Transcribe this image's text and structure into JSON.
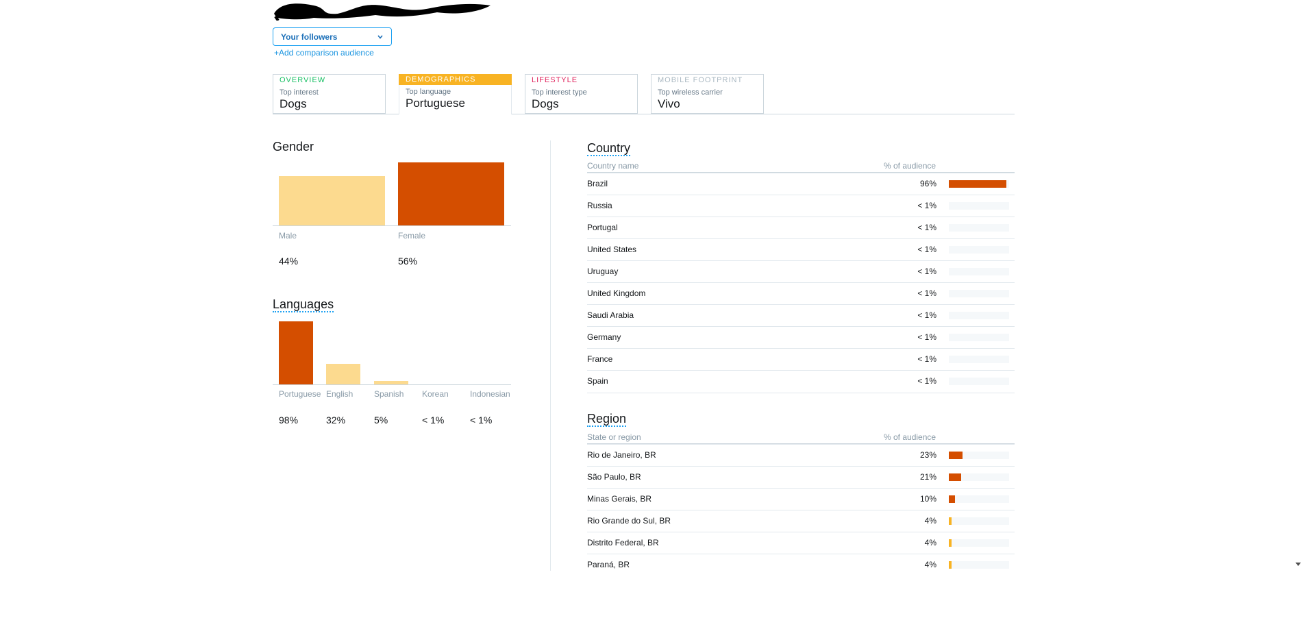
{
  "audience": {
    "selected": "Your followers",
    "add_comparison": "+Add comparison audience"
  },
  "tabs": [
    {
      "category": "Overview",
      "subtitle": "Top interest",
      "value": "Dogs",
      "color": "#17bf63",
      "active": false
    },
    {
      "category": "Demographics",
      "subtitle": "Top language",
      "value": "Portuguese",
      "color": "#ffffff",
      "active": true
    },
    {
      "category": "Lifestyle",
      "subtitle": "Top interest type",
      "value": "Dogs",
      "color": "#e0245e",
      "active": false
    },
    {
      "category": "Mobile Footprint",
      "subtitle": "Top wireless carrier",
      "value": "Vivo",
      "color": "#aab8c2",
      "active": false
    }
  ],
  "gender": {
    "title": "Gender",
    "items": [
      {
        "label": "Male",
        "pct_text": "44%",
        "value": 44,
        "color": "#fcda8f"
      },
      {
        "label": "Female",
        "pct_text": "56%",
        "value": 56,
        "color": "#d44e00"
      }
    ]
  },
  "languages": {
    "title": "Languages",
    "items": [
      {
        "label": "Portuguese",
        "pct_text": "98%",
        "value": 98,
        "color": "#d44e00"
      },
      {
        "label": "English",
        "pct_text": "32%",
        "value": 32,
        "color": "#fcda8f"
      },
      {
        "label": "Spanish",
        "pct_text": "5%",
        "value": 5,
        "color": "#fcda8f"
      },
      {
        "label": "Korean",
        "pct_text": "< 1%",
        "value": 0.5,
        "color": "#fcda8f"
      },
      {
        "label": "Indonesian",
        "pct_text": "< 1%",
        "value": 0.5,
        "color": "#fcda8f"
      }
    ]
  },
  "country": {
    "title": "Country",
    "col_name": "Country name",
    "col_pct": "% of audience",
    "rows": [
      {
        "name": "Brazil",
        "pct_text": "96%",
        "value": 96
      },
      {
        "name": "Russia",
        "pct_text": "< 1%",
        "value": 0
      },
      {
        "name": "Portugal",
        "pct_text": "< 1%",
        "value": 0
      },
      {
        "name": "United States",
        "pct_text": "< 1%",
        "value": 0
      },
      {
        "name": "Uruguay",
        "pct_text": "< 1%",
        "value": 0
      },
      {
        "name": "United Kingdom",
        "pct_text": "< 1%",
        "value": 0
      },
      {
        "name": "Saudi Arabia",
        "pct_text": "< 1%",
        "value": 0
      },
      {
        "name": "Germany",
        "pct_text": "< 1%",
        "value": 0
      },
      {
        "name": "France",
        "pct_text": "< 1%",
        "value": 0
      },
      {
        "name": "Spain",
        "pct_text": "< 1%",
        "value": 0
      }
    ]
  },
  "region": {
    "title": "Region",
    "col_name": "State or region",
    "col_pct": "% of audience",
    "rows": [
      {
        "name": "Rio de Janeiro, BR",
        "pct_text": "23%",
        "value": 23
      },
      {
        "name": "São Paulo, BR",
        "pct_text": "21%",
        "value": 21
      },
      {
        "name": "Minas Gerais, BR",
        "pct_text": "10%",
        "value": 10
      },
      {
        "name": "Rio Grande do Sul, BR",
        "pct_text": "4%",
        "value": 4
      },
      {
        "name": "Distrito Federal, BR",
        "pct_text": "4%",
        "value": 4
      },
      {
        "name": "Paraná, BR",
        "pct_text": "4%",
        "value": 4
      }
    ]
  },
  "colors": {
    "high": "#d44e00",
    "low": "#f8b323",
    "track": "#f5f8fa",
    "accent": "#1da1f2"
  },
  "icons": {
    "dropdown": "chevron-down-icon",
    "scroll": "scroll-down-arrow-icon"
  }
}
